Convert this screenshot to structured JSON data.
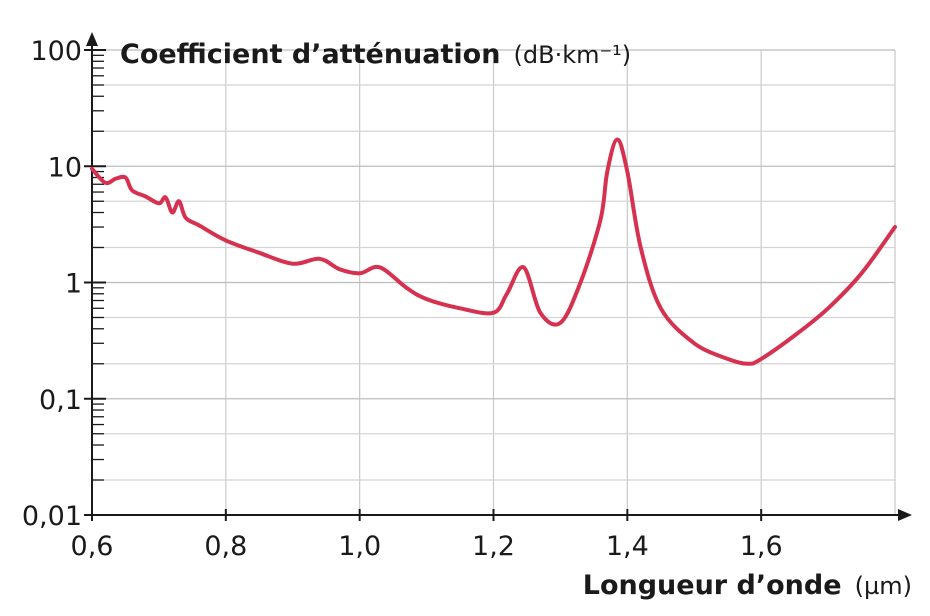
{
  "chart_data": {
    "type": "line",
    "title": "",
    "xlabel": "Longueur d’onde",
    "xlabel_unit": "(µm)",
    "ylabel": "Coefficient d’atténuation",
    "ylabel_unit": "(dB·km⁻¹)",
    "xlim": [
      0.6,
      1.8
    ],
    "ylim": [
      0.01,
      100
    ],
    "yscale": "log",
    "grid": true,
    "x_ticks": [
      {
        "value": 0.6,
        "label": "0,6"
      },
      {
        "value": 0.8,
        "label": "0,8"
      },
      {
        "value": 1.0,
        "label": "1,0"
      },
      {
        "value": 1.2,
        "label": "1,2"
      },
      {
        "value": 1.4,
        "label": "1,4"
      },
      {
        "value": 1.6,
        "label": "1,6"
      }
    ],
    "y_ticks": [
      {
        "value": 100,
        "label": "100"
      },
      {
        "value": 10,
        "label": "10"
      },
      {
        "value": 1,
        "label": "1"
      },
      {
        "value": 0.1,
        "label": "0,1"
      },
      {
        "value": 0.01,
        "label": "0,01"
      }
    ],
    "series": [
      {
        "color": "#d6314f",
        "x": [
          0.6,
          0.62,
          0.635,
          0.65,
          0.66,
          0.68,
          0.7,
          0.71,
          0.72,
          0.73,
          0.74,
          0.76,
          0.8,
          0.85,
          0.9,
          0.94,
          0.97,
          1.0,
          1.03,
          1.07,
          1.1,
          1.15,
          1.2,
          1.22,
          1.245,
          1.27,
          1.3,
          1.33,
          1.36,
          1.37,
          1.385,
          1.4,
          1.42,
          1.45,
          1.5,
          1.55,
          1.58,
          1.6,
          1.65,
          1.7,
          1.75,
          1.8
        ],
        "y": [
          9.5,
          7.2,
          7.8,
          8.0,
          6.2,
          5.5,
          4.8,
          5.4,
          4.0,
          5.0,
          3.6,
          3.1,
          2.3,
          1.8,
          1.45,
          1.6,
          1.3,
          1.2,
          1.35,
          0.9,
          0.72,
          0.6,
          0.55,
          0.8,
          1.35,
          0.55,
          0.45,
          1.0,
          3.5,
          9.0,
          17,
          9.0,
          2.0,
          0.6,
          0.3,
          0.22,
          0.2,
          0.22,
          0.35,
          0.6,
          1.2,
          3.0
        ]
      }
    ]
  }
}
